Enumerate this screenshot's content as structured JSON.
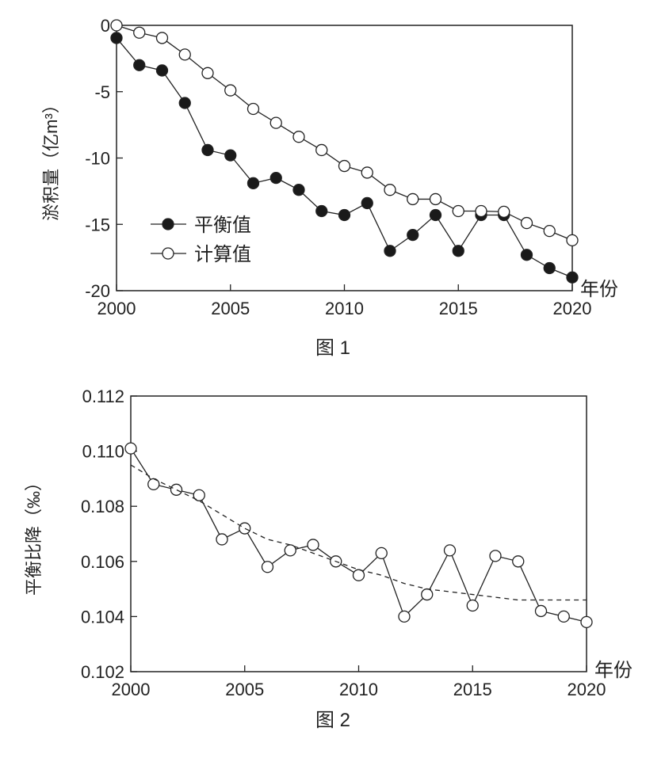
{
  "chart_data": [
    {
      "type": "line",
      "caption": "图 1",
      "xlabel": "年份",
      "ylabel": "淤积量（亿m³）",
      "xlim": [
        2000,
        2020
      ],
      "ylim": [
        -20,
        0
      ],
      "xticks": [
        "2000",
        "2005",
        "2010",
        "2015",
        "2020"
      ],
      "yticks": [
        "0",
        "-5",
        "-10",
        "-15",
        "-20"
      ],
      "legend_position": "bottom-left",
      "x": [
        2000,
        2001,
        2002,
        2003,
        2004,
        2005,
        2006,
        2007,
        2008,
        2009,
        2010,
        2011,
        2012,
        2013,
        2014,
        2015,
        2016,
        2017,
        2018,
        2019,
        2020
      ],
      "series": [
        {
          "name": "平衡值",
          "marker": "filled-circle",
          "values": [
            -0.95,
            -3.0,
            -3.4,
            -5.85,
            -9.4,
            -9.8,
            -11.9,
            -11.5,
            -12.4,
            -14.0,
            -14.3,
            -13.4,
            -17.0,
            -15.8,
            -14.3,
            -17.0,
            -14.3,
            -14.3,
            -17.3,
            -18.3,
            -19.0
          ]
        },
        {
          "name": "计算值",
          "marker": "open-circle",
          "values": [
            0,
            -0.55,
            -0.95,
            -2.2,
            -3.6,
            -4.9,
            -6.3,
            -7.35,
            -8.4,
            -9.4,
            -10.6,
            -11.1,
            -12.4,
            -13.1,
            -13.1,
            -14.0,
            -14.0,
            -14.05,
            -14.9,
            -15.5,
            -16.2
          ]
        }
      ]
    },
    {
      "type": "line",
      "caption": "图 2",
      "xlabel": "年份",
      "ylabel": "平衡比降（‰）",
      "xlim": [
        2000,
        2020
      ],
      "ylim": [
        0.102,
        0.112
      ],
      "xticks": [
        "2000",
        "2005",
        "2010",
        "2015",
        "2020"
      ],
      "yticks": [
        "0.112",
        "0.110",
        "0.108",
        "0.106",
        "0.104",
        "0.102"
      ],
      "x": [
        2000,
        2001,
        2002,
        2003,
        2004,
        2005,
        2006,
        2007,
        2008,
        2009,
        2010,
        2011,
        2012,
        2013,
        2014,
        2015,
        2016,
        2017,
        2018,
        2019,
        2020
      ],
      "series": [
        {
          "name": "平衡比降",
          "marker": "open-circle",
          "values": [
            0.1101,
            0.1088,
            0.1086,
            0.1084,
            0.1068,
            0.1072,
            0.1058,
            0.1064,
            0.1066,
            0.106,
            0.1055,
            0.1063,
            0.104,
            0.1048,
            0.1064,
            0.1044,
            0.1062,
            0.106,
            0.1042,
            0.104,
            0.1038
          ]
        },
        {
          "name": "趋势线",
          "style": "dashed",
          "values": [
            0.1095,
            0.109,
            0.1086,
            0.1082,
            0.1077,
            0.1072,
            0.1068,
            0.1066,
            0.1063,
            0.106,
            0.1057,
            0.1055,
            0.1052,
            0.105,
            0.1049,
            0.1048,
            0.1047,
            0.1046,
            0.1046,
            0.1046,
            0.1046
          ]
        }
      ]
    }
  ]
}
